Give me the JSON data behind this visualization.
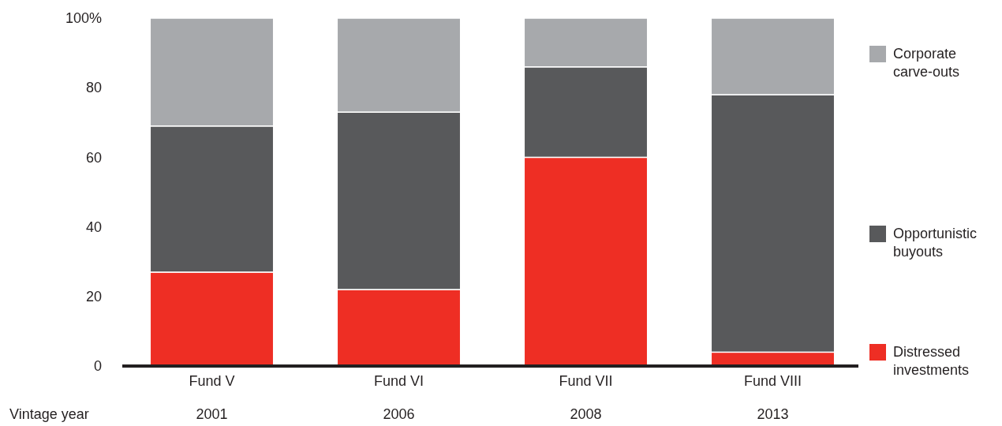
{
  "chart_data": {
    "type": "bar",
    "stacked": true,
    "categories": [
      "Fund V",
      "Fund VI",
      "Fund VII",
      "Fund VIII"
    ],
    "series": [
      {
        "name": "Distressed investments",
        "color": "#ee2e24",
        "values": [
          27,
          22,
          60,
          4
        ]
      },
      {
        "name": "Opportunistic buyouts",
        "color": "#58595b",
        "values": [
          42,
          51,
          26,
          74
        ]
      },
      {
        "name": "Corporate carve-outs",
        "color": "#a7a9ac",
        "values": [
          31,
          27,
          14,
          22
        ]
      }
    ],
    "ylim": [
      0,
      100
    ],
    "yticks": [
      0,
      20,
      40,
      60,
      80,
      {
        "value": 100,
        "label": "100%"
      }
    ],
    "grid": false,
    "legend": "right",
    "annotations": [
      "Vintage year",
      "2001",
      "2006",
      "2008",
      "2013"
    ]
  }
}
